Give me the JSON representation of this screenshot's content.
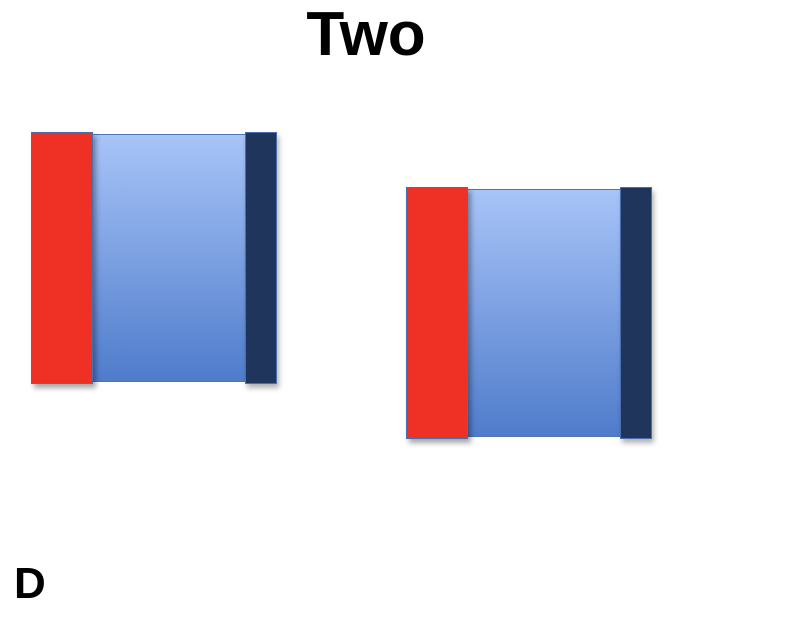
{
  "title": "Two",
  "corner_label": "D",
  "colors": {
    "left_plate": "#ee3124",
    "right_plate": "#1f355b",
    "middle_gradient_top": "#a8c4f8",
    "middle_gradient_bottom": "#4f7ccb",
    "background": "#ffffff"
  },
  "blocks": [
    {
      "segments": [
        "red-plate",
        "blue-gradient-body",
        "navy-plate"
      ]
    },
    {
      "segments": [
        "red-plate",
        "blue-gradient-body",
        "navy-plate"
      ]
    }
  ]
}
